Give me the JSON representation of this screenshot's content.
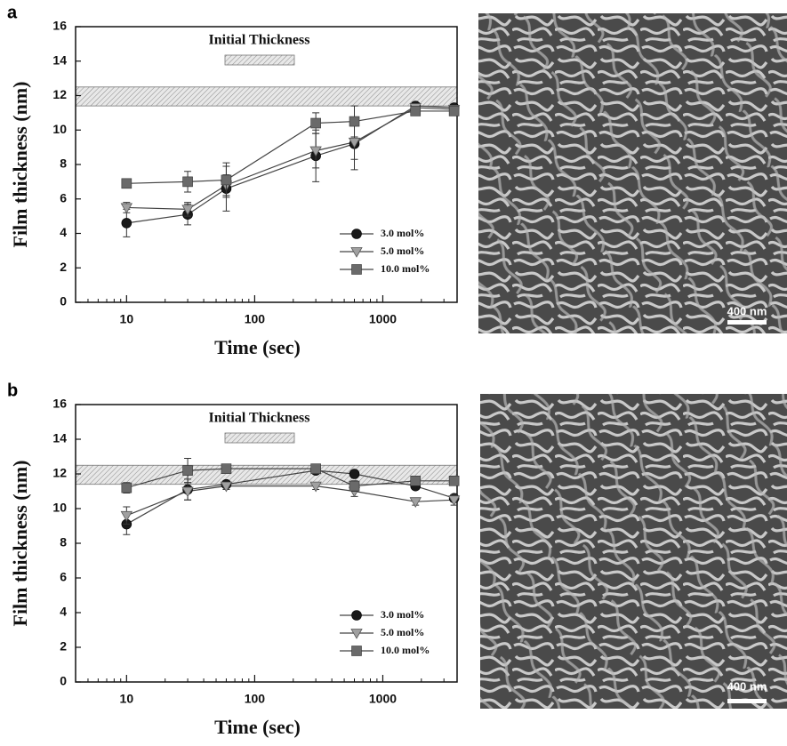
{
  "chart_data": [
    {
      "type": "line",
      "panel": "a",
      "xlabel": "Time (sec)",
      "ylabel": "Film thickness (nm)",
      "annotation": "Initial Thickness",
      "band": [
        11.4,
        12.5
      ],
      "log_x": true,
      "xlim": [
        4,
        3800
      ],
      "xticks": [
        10,
        100,
        1000
      ],
      "ylim": [
        0,
        16
      ],
      "yticks": [
        0,
        2,
        4,
        6,
        8,
        10,
        12,
        14,
        16
      ],
      "x": [
        10,
        30,
        60,
        300,
        600,
        1800,
        3600
      ],
      "series": [
        {
          "name": "3.0 mol%",
          "color": "#1a1a1a",
          "marker": "circle",
          "values": [
            4.6,
            5.1,
            6.6,
            8.5,
            9.2,
            11.4,
            11.3
          ],
          "errors": [
            0.8,
            0.6,
            1.3,
            1.5,
            1.5,
            0.2,
            0.2
          ]
        },
        {
          "name": "5.0 mol%",
          "color": "#a0a0a0",
          "marker": "triangle",
          "values": [
            5.5,
            5.4,
            6.8,
            8.8,
            9.3,
            11.3,
            11.2
          ],
          "errors": [
            0.3,
            0.4,
            0.6,
            1.0,
            1.0,
            0.2,
            0.2
          ]
        },
        {
          "name": "10.0 mol%",
          "color": "#6a6a6a",
          "marker": "square",
          "values": [
            6.9,
            7.0,
            7.1,
            10.4,
            10.5,
            11.1,
            11.1
          ],
          "errors": [
            0.2,
            0.6,
            1.0,
            0.6,
            0.9,
            0.2,
            0.2
          ]
        }
      ],
      "scale_bar": "400 nm"
    },
    {
      "type": "line",
      "panel": "b",
      "xlabel": "Time (sec)",
      "ylabel": "Film thickness (nm)",
      "annotation": "Initial Thickness",
      "band": [
        11.4,
        12.5
      ],
      "log_x": true,
      "xlim": [
        4,
        3800
      ],
      "xticks": [
        10,
        100,
        1000
      ],
      "ylim": [
        0,
        16
      ],
      "yticks": [
        0,
        2,
        4,
        6,
        8,
        10,
        12,
        14,
        16
      ],
      "x": [
        10,
        30,
        60,
        300,
        600,
        1800,
        3600
      ],
      "series": [
        {
          "name": "3.0 mol%",
          "color": "#1a1a1a",
          "marker": "circle",
          "values": [
            9.1,
            11.1,
            11.4,
            12.2,
            12.0,
            11.3,
            10.6
          ],
          "errors": [
            0.6,
            0.6,
            0.2,
            0.2,
            0.2,
            0.2,
            0.2
          ]
        },
        {
          "name": "5.0 mol%",
          "color": "#a0a0a0",
          "marker": "triangle",
          "values": [
            9.6,
            11.0,
            11.3,
            11.3,
            11.0,
            10.4,
            10.5
          ],
          "errors": [
            0.5,
            0.5,
            0.2,
            0.2,
            0.3,
            0.2,
            0.3
          ]
        },
        {
          "name": "10.0 mol%",
          "color": "#6a6a6a",
          "marker": "square",
          "values": [
            11.2,
            12.2,
            12.3,
            12.3,
            11.3,
            11.6,
            11.6
          ],
          "errors": [
            0.3,
            0.7,
            0.2,
            0.2,
            0.3,
            0.2,
            0.2
          ]
        }
      ],
      "scale_bar": "400 nm"
    }
  ]
}
